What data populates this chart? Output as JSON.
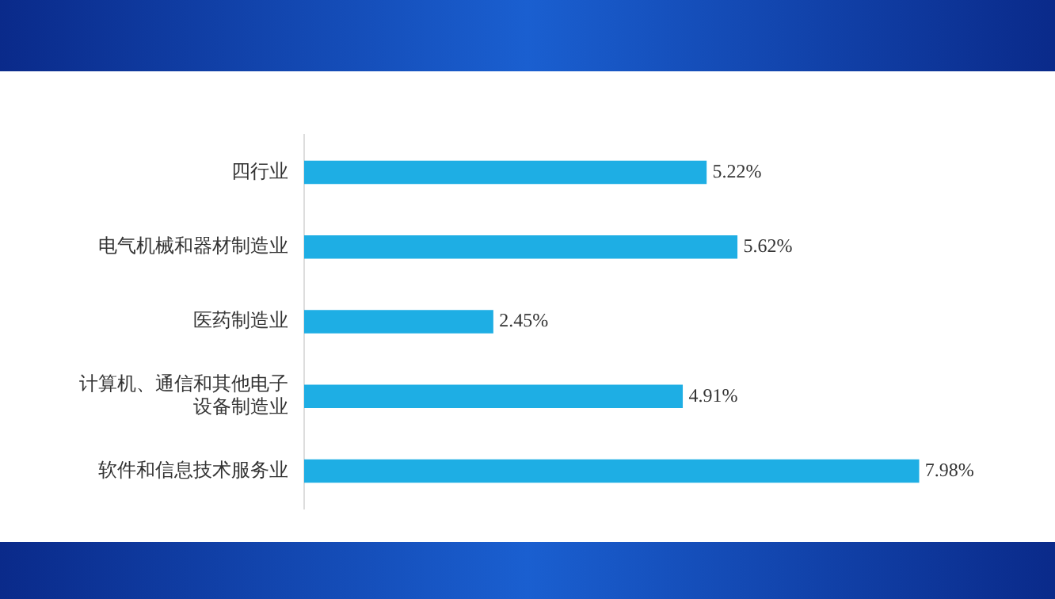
{
  "chart_data": {
    "type": "bar",
    "orientation": "horizontal",
    "categories": [
      "四行业",
      "电气机械和器材制造业",
      "医药制造业",
      "计算机、通信和其他电子设备制造业",
      "软件和信息技术服务业"
    ],
    "values": [
      5.22,
      5.62,
      2.45,
      4.91,
      7.98
    ],
    "value_labels": [
      "5.22%",
      "5.62%",
      "2.45%",
      "4.91%",
      "7.98%"
    ],
    "color": "#1eaee4"
  }
}
